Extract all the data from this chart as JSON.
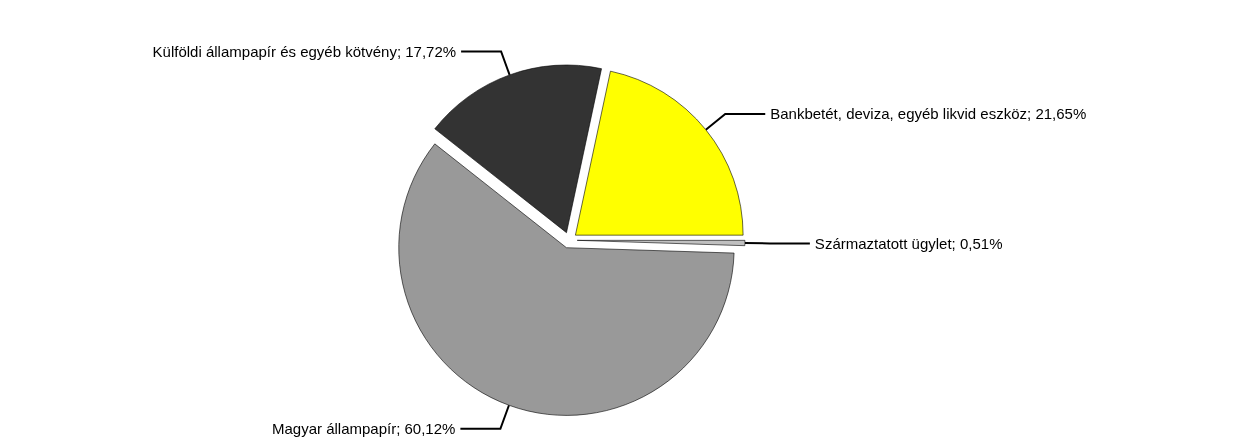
{
  "chart_data": {
    "type": "pie",
    "categories": [
      "Bankbetét, deviza, egyéb likvid eszköz",
      "Származtatott ügylet",
      "Magyar állampapír",
      "Külföldi állampapír és egyéb kötvény"
    ],
    "values": [
      21.65,
      0.51,
      60.12,
      17.72
    ],
    "value_labels": [
      "21,65%",
      "0,51%",
      "60,12%",
      "17,72%"
    ],
    "colors": [
      "#ffff00",
      "#c0c0c0",
      "#999999",
      "#333333"
    ],
    "legend": false
  }
}
